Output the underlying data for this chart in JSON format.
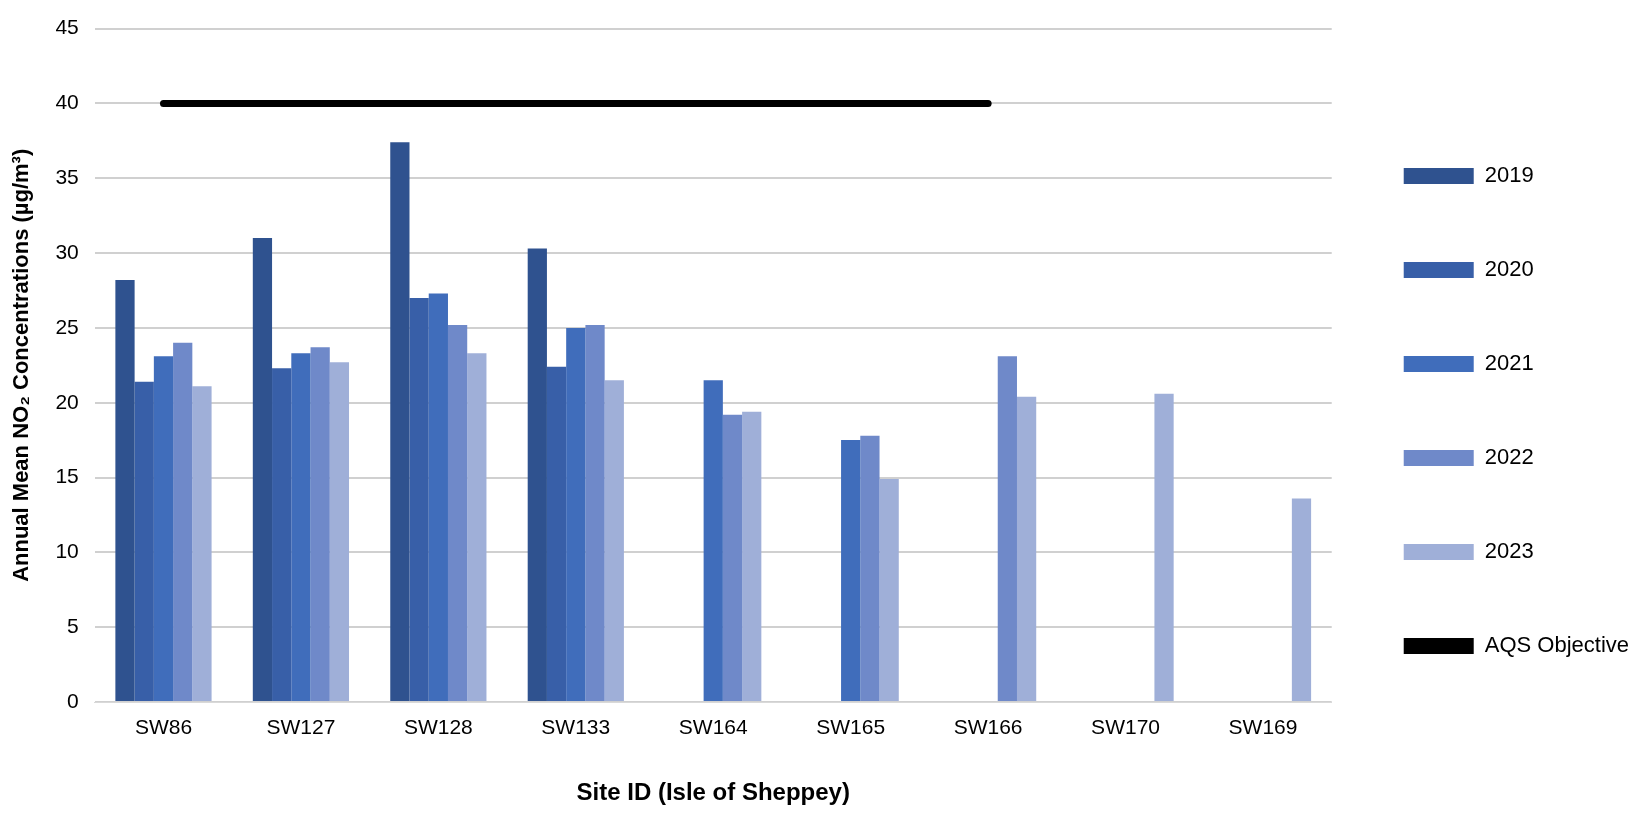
{
  "chart_data": {
    "type": "bar",
    "xlabel": "Site ID (Isle of Sheppey)",
    "ylabel": "Annual Mean NO₂ Concentrations (µg/m³)",
    "categories": [
      "SW86",
      "SW127",
      "SW128",
      "SW133",
      "SW164",
      "SW165",
      "SW166",
      "SW170",
      "SW169"
    ],
    "series": [
      {
        "name": "2019",
        "color": "#2f528f",
        "values": [
          28.2,
          31.0,
          37.4,
          30.3,
          null,
          null,
          null,
          null,
          null
        ]
      },
      {
        "name": "2020",
        "color": "#385fa8",
        "values": [
          21.4,
          22.3,
          27.0,
          22.4,
          null,
          null,
          null,
          null,
          null
        ]
      },
      {
        "name": "2021",
        "color": "#406dbb",
        "values": [
          23.1,
          23.3,
          27.3,
          25.0,
          21.5,
          17.5,
          null,
          null,
          null
        ]
      },
      {
        "name": "2022",
        "color": "#6f89c9",
        "values": [
          24.0,
          23.7,
          25.2,
          25.2,
          19.2,
          17.8,
          23.1,
          null,
          null
        ]
      },
      {
        "name": "2023",
        "color": "#9fafd8",
        "values": [
          21.1,
          22.7,
          23.3,
          21.5,
          19.4,
          14.9,
          20.4,
          20.6,
          13.6
        ]
      },
      {
        "name": "AQS Objective",
        "type": "line",
        "color": "#000000",
        "values": [
          40,
          40,
          40,
          40,
          40,
          40,
          40,
          null,
          null
        ]
      }
    ],
    "ylim": [
      0,
      45
    ],
    "yticks": [
      0,
      5,
      10,
      15,
      20,
      25,
      30,
      35,
      40,
      45
    ],
    "grid": "y",
    "legend": "right",
    "marker": "none"
  }
}
